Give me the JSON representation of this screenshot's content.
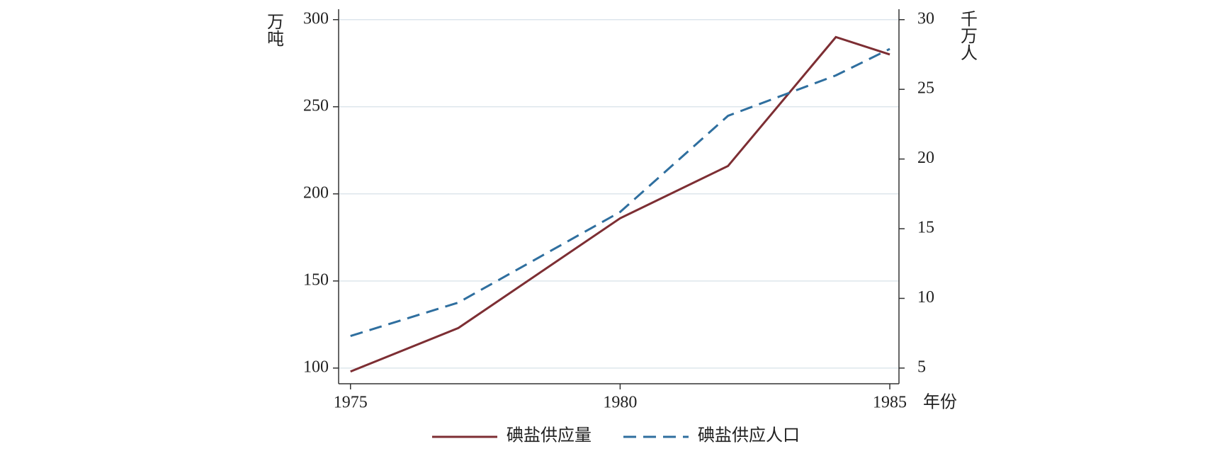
{
  "chart_data": {
    "type": "line",
    "x": [
      1975,
      1977,
      1980,
      1982,
      1984,
      1985
    ],
    "xlim": [
      1974.78,
      1985.17
    ],
    "xticks": [
      1975,
      1980,
      1985
    ],
    "ylim": [
      91,
      306
    ],
    "yticks": [
      100,
      150,
      200,
      250,
      300
    ],
    "y2lim": [
      3.875,
      30.75
    ],
    "y2ticks": [
      5,
      10,
      15,
      20,
      25,
      30
    ],
    "ylabel": "万吨",
    "y2label": "千万人",
    "xlabel": "年份",
    "grid": true,
    "series": [
      {
        "name": "碘盐供应量",
        "color": "#7d2e33",
        "values": [
          98,
          123,
          186,
          216,
          290,
          280
        ]
      },
      {
        "name": "碘盐供应人口",
        "color": "#2f6f9f",
        "axis": "y2",
        "dashed": true,
        "values": [
          7.3,
          9.7,
          16.2,
          23.1,
          26.0,
          27.9
        ]
      }
    ]
  }
}
